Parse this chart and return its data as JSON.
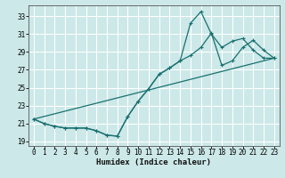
{
  "xlabel": "Humidex (Indice chaleur)",
  "bg_color": "#cce8e8",
  "grid_color": "#ffffff",
  "line_color": "#1a7070",
  "xlim": [
    -0.5,
    23.5
  ],
  "ylim": [
    18.5,
    34.2
  ],
  "xticks": [
    0,
    1,
    2,
    3,
    4,
    5,
    6,
    7,
    8,
    9,
    10,
    11,
    12,
    13,
    14,
    15,
    16,
    17,
    18,
    19,
    20,
    21,
    22,
    23
  ],
  "yticks": [
    19,
    21,
    23,
    25,
    27,
    29,
    31,
    33
  ],
  "series_volatile_x": [
    0,
    1,
    2,
    3,
    4,
    5,
    6,
    7,
    8,
    9,
    10,
    11,
    12,
    13,
    14,
    15,
    16,
    17,
    18,
    19,
    20,
    21,
    22,
    23
  ],
  "series_volatile_y": [
    21.5,
    21.0,
    20.7,
    20.5,
    20.5,
    20.5,
    20.2,
    19.7,
    19.6,
    21.8,
    23.5,
    24.9,
    26.5,
    27.2,
    28.0,
    32.2,
    33.5,
    31.0,
    29.5,
    30.2,
    30.5,
    29.2,
    28.3,
    28.3
  ],
  "series_smooth_x": [
    0,
    1,
    2,
    3,
    4,
    5,
    6,
    7,
    8,
    9,
    10,
    11,
    12,
    13,
    14,
    15,
    16,
    17,
    18,
    19,
    20,
    21,
    22,
    23
  ],
  "series_smooth_y": [
    21.5,
    21.0,
    20.7,
    20.5,
    20.5,
    20.5,
    20.2,
    19.7,
    19.6,
    21.8,
    23.5,
    24.9,
    26.5,
    27.2,
    28.0,
    28.6,
    29.5,
    31.1,
    27.5,
    28.0,
    29.5,
    30.3,
    29.2,
    28.3
  ],
  "series_line_x": [
    0,
    23
  ],
  "series_line_y": [
    21.5,
    28.3
  ],
  "markersize": 3,
  "linewidth": 0.9
}
